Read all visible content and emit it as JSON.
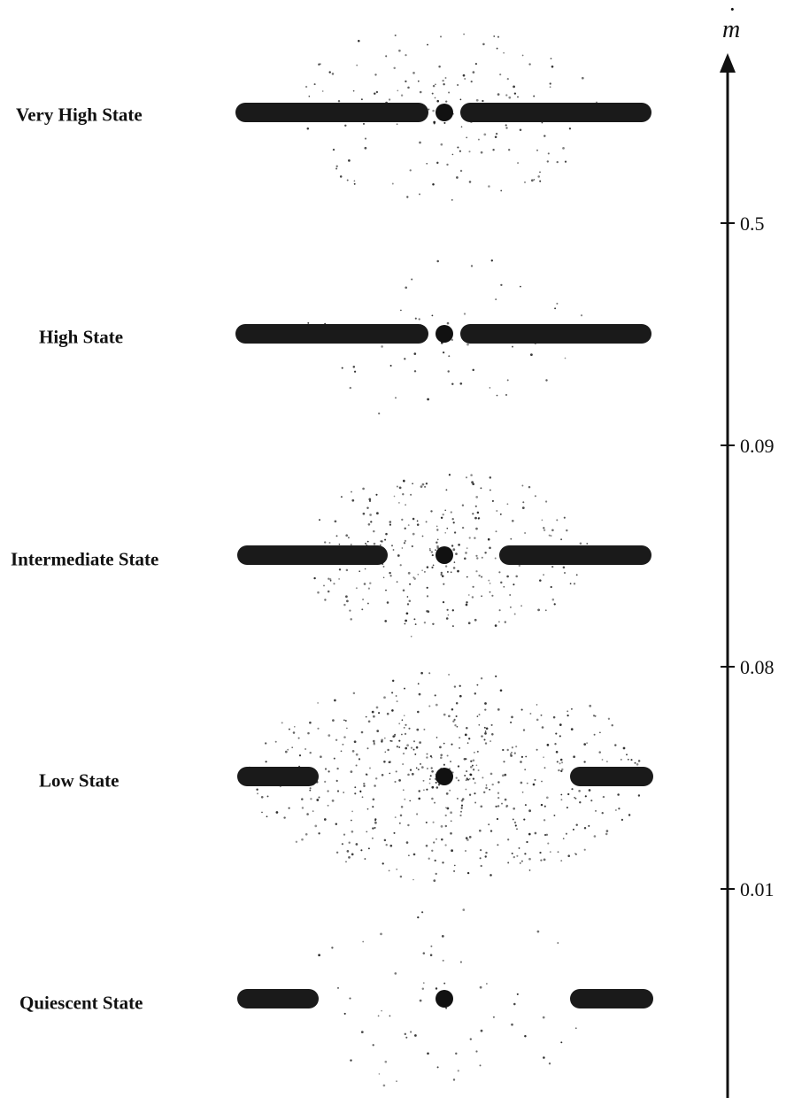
{
  "diagram": {
    "axis": {
      "symbol": "m",
      "dot_accent": "·",
      "ticks": [
        "0.5",
        "0.09",
        "0.08",
        "0.01"
      ]
    },
    "states": [
      {
        "label": "Very High State",
        "disk": "continuous",
        "halo": "moderate"
      },
      {
        "label": "High State",
        "disk": "continuous",
        "halo": "sparse"
      },
      {
        "label": "Intermediate State",
        "disk": "truncated",
        "halo": "dense"
      },
      {
        "label": "Low State",
        "disk": "truncated-far",
        "halo": "very-dense"
      },
      {
        "label": "Quiescent State",
        "disk": "truncated-far",
        "halo": "sparse"
      }
    ],
    "colors": {
      "ink": "#111111",
      "disk": "#1a1a1a",
      "background": "#ffffff"
    }
  }
}
